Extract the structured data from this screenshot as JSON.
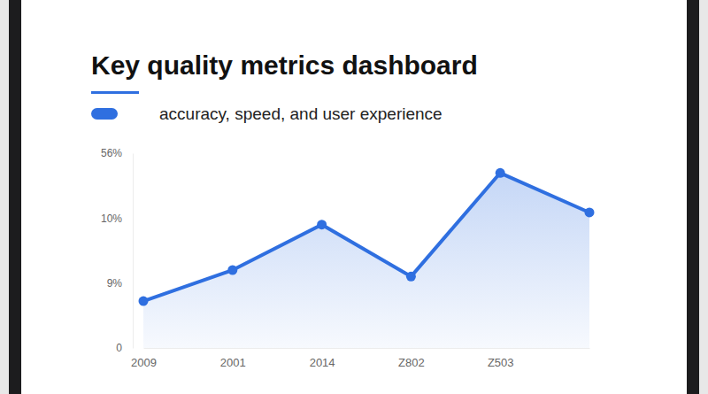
{
  "chart_data": {
    "type": "line",
    "title": "Key quality metrics dashboard",
    "subtitle": "accuracy, speed, and user experience",
    "categories": [
      "2009",
      "2001",
      "2014",
      "Z802",
      "Z503",
      null
    ],
    "values": [
      6.5,
      9.2,
      9.9,
      9.1,
      42,
      14
    ],
    "color": "#2f6fe0",
    "marker": "circle",
    "grid": false,
    "ylim": [
      0,
      56
    ],
    "yticks": [
      {
        "value": 0,
        "label": "0"
      },
      {
        "value": 9,
        "label": "9%"
      },
      {
        "value": 10,
        "label": "10%"
      },
      {
        "value": 56,
        "label": "56%"
      }
    ]
  }
}
